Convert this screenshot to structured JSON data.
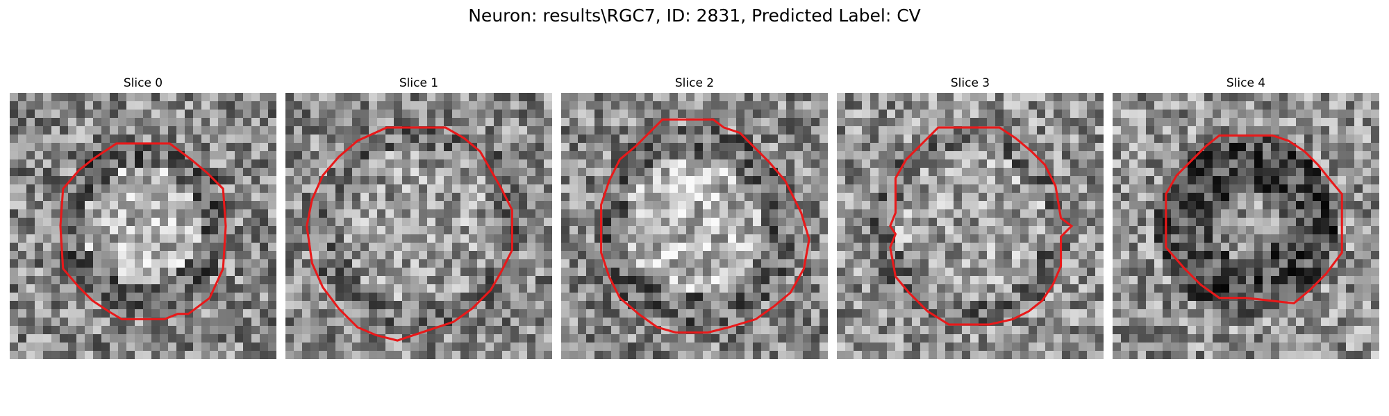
{
  "title": "Neuron: results\\RGC7, ID: 2831, Predicted Label: CV",
  "outline_color": "#e8191a",
  "slices": [
    {
      "title": "Slice 0",
      "contour": [
        [
          0.4,
          0.19
        ],
        [
          0.6,
          0.19
        ],
        [
          0.64,
          0.22
        ],
        [
          0.68,
          0.25
        ],
        [
          0.74,
          0.3
        ],
        [
          0.8,
          0.36
        ],
        [
          0.81,
          0.5
        ],
        [
          0.8,
          0.66
        ],
        [
          0.75,
          0.77
        ],
        [
          0.71,
          0.8
        ],
        [
          0.67,
          0.83
        ],
        [
          0.63,
          0.83
        ],
        [
          0.58,
          0.85
        ],
        [
          0.42,
          0.85
        ],
        [
          0.37,
          0.82
        ],
        [
          0.31,
          0.78
        ],
        [
          0.26,
          0.73
        ],
        [
          0.2,
          0.66
        ],
        [
          0.19,
          0.5
        ],
        [
          0.2,
          0.36
        ],
        [
          0.26,
          0.29
        ],
        [
          0.31,
          0.25
        ]
      ]
    },
    {
      "title": "Slice 1",
      "contour": [
        [
          0.38,
          0.13
        ],
        [
          0.6,
          0.13
        ],
        [
          0.67,
          0.17
        ],
        [
          0.73,
          0.22
        ],
        [
          0.77,
          0.29
        ],
        [
          0.81,
          0.36
        ],
        [
          0.85,
          0.44
        ],
        [
          0.85,
          0.59
        ],
        [
          0.81,
          0.67
        ],
        [
          0.77,
          0.74
        ],
        [
          0.7,
          0.81
        ],
        [
          0.63,
          0.86
        ],
        [
          0.54,
          0.89
        ],
        [
          0.42,
          0.93
        ],
        [
          0.34,
          0.91
        ],
        [
          0.27,
          0.88
        ],
        [
          0.2,
          0.81
        ],
        [
          0.14,
          0.73
        ],
        [
          0.1,
          0.64
        ],
        [
          0.08,
          0.5
        ],
        [
          0.1,
          0.4
        ],
        [
          0.14,
          0.31
        ],
        [
          0.2,
          0.24
        ],
        [
          0.27,
          0.18
        ]
      ]
    },
    {
      "title": "Slice 2",
      "contour": [
        [
          0.38,
          0.1
        ],
        [
          0.57,
          0.1
        ],
        [
          0.61,
          0.13
        ],
        [
          0.67,
          0.15
        ],
        [
          0.72,
          0.2
        ],
        [
          0.78,
          0.26
        ],
        [
          0.84,
          0.33
        ],
        [
          0.9,
          0.45
        ],
        [
          0.93,
          0.55
        ],
        [
          0.91,
          0.66
        ],
        [
          0.86,
          0.75
        ],
        [
          0.8,
          0.8
        ],
        [
          0.73,
          0.85
        ],
        [
          0.63,
          0.88
        ],
        [
          0.55,
          0.9
        ],
        [
          0.43,
          0.9
        ],
        [
          0.36,
          0.88
        ],
        [
          0.29,
          0.83
        ],
        [
          0.22,
          0.77
        ],
        [
          0.18,
          0.69
        ],
        [
          0.15,
          0.6
        ],
        [
          0.15,
          0.42
        ],
        [
          0.18,
          0.33
        ],
        [
          0.22,
          0.25
        ],
        [
          0.28,
          0.2
        ],
        [
          0.33,
          0.15
        ]
      ]
    },
    {
      "title": "Slice 3",
      "contour": [
        [
          0.38,
          0.13
        ],
        [
          0.61,
          0.13
        ],
        [
          0.67,
          0.17
        ],
        [
          0.73,
          0.22
        ],
        [
          0.78,
          0.27
        ],
        [
          0.82,
          0.35
        ],
        [
          0.84,
          0.47
        ],
        [
          0.88,
          0.5
        ],
        [
          0.84,
          0.54
        ],
        [
          0.84,
          0.65
        ],
        [
          0.81,
          0.72
        ],
        [
          0.77,
          0.78
        ],
        [
          0.72,
          0.82
        ],
        [
          0.66,
          0.85
        ],
        [
          0.57,
          0.87
        ],
        [
          0.42,
          0.87
        ],
        [
          0.34,
          0.82
        ],
        [
          0.27,
          0.75
        ],
        [
          0.22,
          0.69
        ],
        [
          0.2,
          0.58
        ],
        [
          0.22,
          0.53
        ],
        [
          0.2,
          0.5
        ],
        [
          0.22,
          0.45
        ],
        [
          0.22,
          0.32
        ],
        [
          0.26,
          0.25
        ],
        [
          0.31,
          0.2
        ]
      ]
    },
    {
      "title": "Slice 4",
      "contour": [
        [
          0.4,
          0.16
        ],
        [
          0.6,
          0.16
        ],
        [
          0.66,
          0.18
        ],
        [
          0.72,
          0.22
        ],
        [
          0.77,
          0.27
        ],
        [
          0.81,
          0.32
        ],
        [
          0.86,
          0.38
        ],
        [
          0.86,
          0.6
        ],
        [
          0.8,
          0.68
        ],
        [
          0.74,
          0.74
        ],
        [
          0.68,
          0.79
        ],
        [
          0.5,
          0.77
        ],
        [
          0.4,
          0.77
        ],
        [
          0.33,
          0.72
        ],
        [
          0.27,
          0.66
        ],
        [
          0.2,
          0.58
        ],
        [
          0.2,
          0.38
        ],
        [
          0.24,
          0.31
        ],
        [
          0.3,
          0.25
        ],
        [
          0.35,
          0.2
        ]
      ]
    }
  ]
}
